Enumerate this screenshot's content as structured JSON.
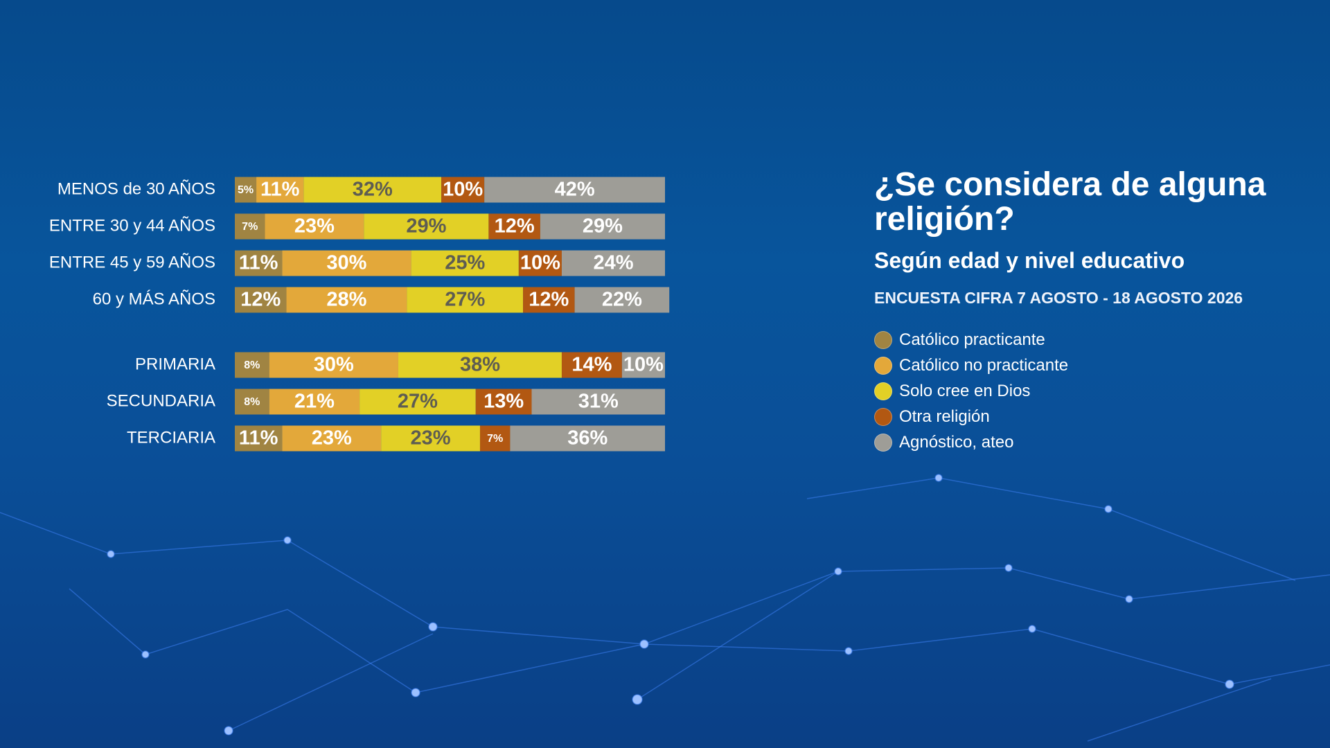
{
  "chart_data": {
    "type": "stacked-bar-horizontal",
    "title": "¿Se considera de alguna religión?",
    "subtitle": "Según edad y nivel educativo",
    "source": "ENCUESTA CIFRA 7 AGOSTO - 18 AGOSTO 2026",
    "categories": [
      "MENOS de 30 AÑOS",
      "ENTRE 30 y 44 AÑOS",
      "ENTRE 45 y 59 AÑOS",
      "60 y MÁS AÑOS",
      "PRIMARIA",
      "SECUNDARIA",
      "TERCIARIA"
    ],
    "xlim": [
      0,
      100
    ],
    "series": [
      {
        "name": "Católico practicante",
        "color": "#a08442",
        "values": [
          5,
          7,
          11,
          12,
          8,
          8,
          11
        ],
        "value_labels": [
          "5%",
          "7%",
          "11%",
          "12%",
          "8%",
          "8%",
          "11%"
        ]
      },
      {
        "name": "Católico no practicante",
        "color": "#e3a83a",
        "values": [
          11,
          23,
          30,
          28,
          30,
          21,
          23
        ],
        "value_labels": [
          "11%",
          "23%",
          "30%",
          "28%",
          "30%",
          "21%",
          "23%"
        ]
      },
      {
        "name": "Solo cree en Dios",
        "color": "#e2d026",
        "values": [
          32,
          29,
          25,
          27,
          38,
          27,
          23
        ],
        "value_labels": [
          "32%",
          "29%",
          "25%",
          "27%",
          "38%",
          "27%",
          "23%"
        ]
      },
      {
        "name": "Otra religión",
        "color": "#b25812",
        "values": [
          10,
          12,
          10,
          12,
          14,
          13,
          7
        ],
        "value_labels": [
          "10%",
          "12%",
          "10%",
          "12%",
          "14%",
          "13%",
          "7%"
        ]
      },
      {
        "name": "Agnóstico, ateo",
        "color": "#9e9d97",
        "values": [
          42,
          29,
          24,
          22,
          10,
          31,
          36
        ],
        "value_labels": [
          "42%",
          "29%",
          "24%",
          "22%",
          "10%",
          "31%",
          "36%"
        ]
      }
    ]
  }
}
